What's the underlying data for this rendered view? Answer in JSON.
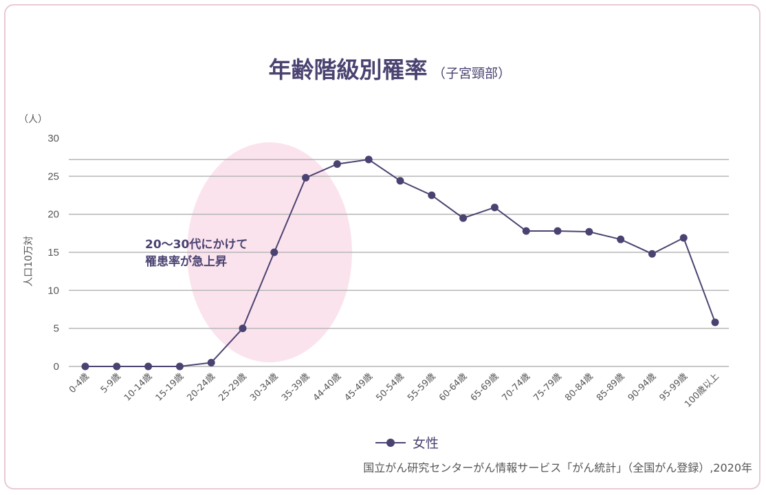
{
  "chart_data": {
    "type": "line",
    "title": "年齢階級別罹率",
    "subtitle": "（子宮頸部）",
    "y_unit": "（人）",
    "ylabel": "人口10万対",
    "ylim": [
      0,
      30
    ],
    "yticks": [
      0,
      5,
      10,
      15,
      20,
      25,
      30
    ],
    "grid": true,
    "categories": [
      "0-4歳",
      "5-9歳",
      "10-14歳",
      "15-19歳",
      "20-24歳",
      "25-29歳",
      "30-34歳",
      "35-39歳",
      "44-40歳",
      "45-49歳",
      "50-54歳",
      "55-59歳",
      "60-64歳",
      "65-69歳",
      "70-74歳",
      "75-79歳",
      "80-84歳",
      "85-89歳",
      "90-94歳",
      "95-99歳",
      "100歳以上"
    ],
    "series": [
      {
        "name": "女性",
        "color": "#4a4270",
        "values": [
          0,
          0,
          0,
          0,
          0.5,
          5.0,
          15.0,
          24.8,
          26.6,
          27.2,
          24.4,
          22.5,
          19.5,
          20.9,
          17.8,
          17.8,
          17.7,
          16.7,
          14.8,
          16.9,
          5.8
        ]
      }
    ],
    "annotation": {
      "lines": [
        "20〜30代にかけて",
        "罹患率が急上昇"
      ],
      "highlight_color": "#fbe3ee"
    },
    "legend_position": "bottom-center",
    "source": "国立がん研究センターがん情報サービス「がん統計」（全国がん登録）,2020年"
  }
}
